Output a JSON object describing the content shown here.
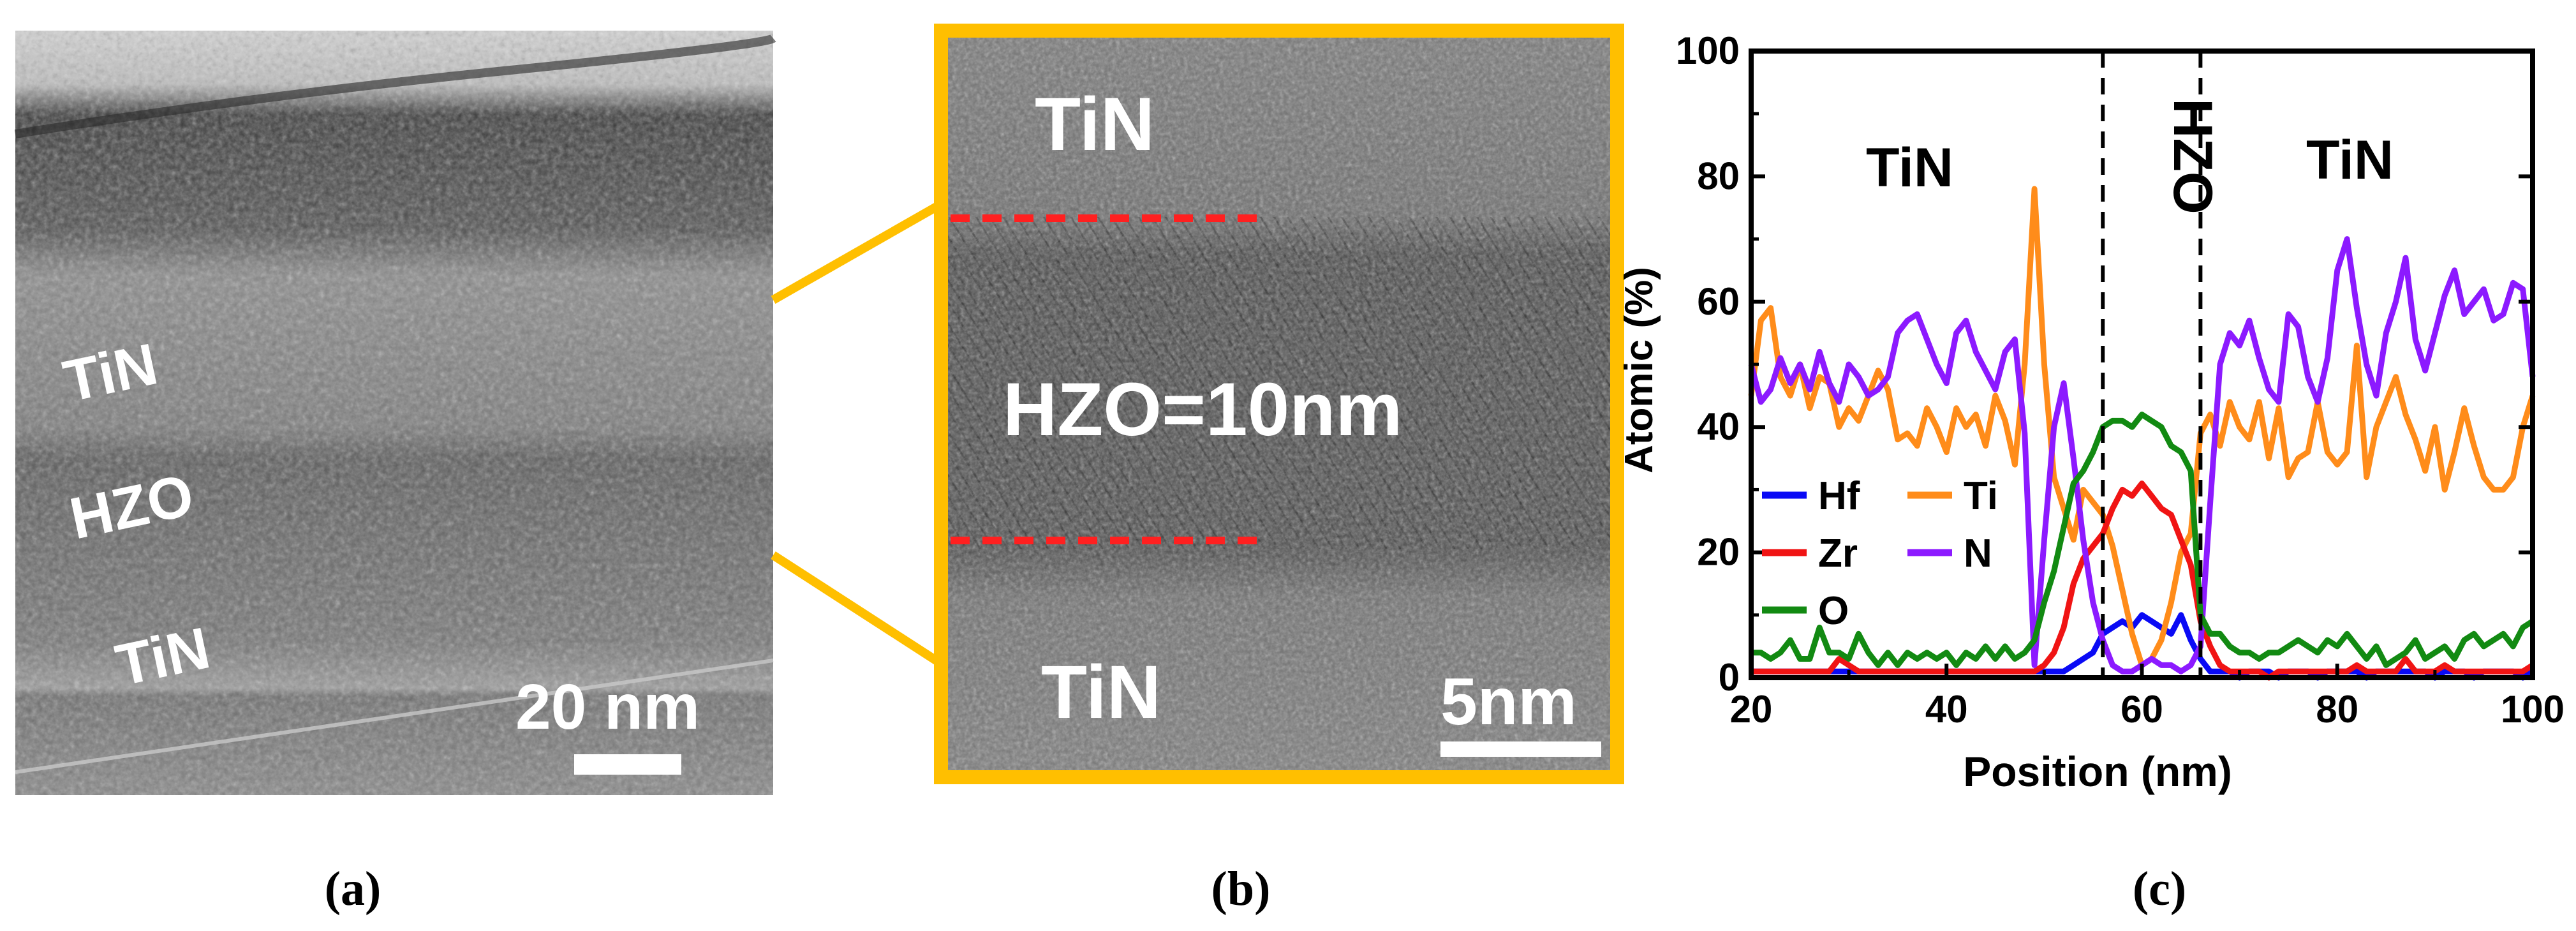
{
  "panels": {
    "a": {
      "caption": "(a)",
      "layer_labels": [
        "TiN",
        "HZO",
        "TiN"
      ],
      "scale_bar_label": "20 nm"
    },
    "b": {
      "caption": "(b)",
      "top_label": "TiN",
      "middle_label": "HZO=10nm",
      "bottom_label": "TiN",
      "scale_bar_label": "5nm"
    },
    "c": {
      "caption": "(c)",
      "region_labels": {
        "left": "TiN",
        "middle": "HZO",
        "right": "TiN"
      }
    }
  },
  "colors": {
    "highlight_frame": "#FFBF00",
    "interface_dash": "#FF2020",
    "Hf": "#0A0AF5",
    "Ti": "#FF8C1A",
    "Zr": "#F01414",
    "N": "#8C1AFF",
    "O": "#128A12"
  },
  "chart_data": {
    "type": "line",
    "title": "",
    "xlabel": "Position (nm)",
    "ylabel": "Atomic (%)",
    "xlim": [
      20,
      100
    ],
    "ylim": [
      0,
      100
    ],
    "xticks": [
      20,
      40,
      60,
      80,
      100
    ],
    "yticks": [
      0,
      20,
      40,
      60,
      80,
      100
    ],
    "boundaries": [
      56,
      66
    ],
    "x": [
      20,
      21,
      22,
      23,
      24,
      25,
      26,
      27,
      28,
      29,
      30,
      31,
      32,
      33,
      34,
      35,
      36,
      37,
      38,
      39,
      40,
      41,
      42,
      43,
      44,
      45,
      46,
      47,
      48,
      49,
      50,
      51,
      52,
      53,
      54,
      55,
      56,
      57,
      58,
      59,
      60,
      61,
      62,
      63,
      64,
      65,
      66,
      67,
      68,
      69,
      70,
      71,
      72,
      73,
      74,
      75,
      76,
      77,
      78,
      79,
      80,
      81,
      82,
      83,
      84,
      85,
      86,
      87,
      88,
      89,
      90,
      91,
      92,
      93,
      94,
      95,
      96,
      97,
      98,
      99,
      100
    ],
    "series": [
      {
        "name": "Hf",
        "values": [
          1,
          1,
          1,
          1,
          1,
          1,
          1,
          1,
          1,
          1,
          1,
          1,
          1,
          1,
          1,
          1,
          1,
          1,
          1,
          1,
          1,
          1,
          1,
          1,
          1,
          1,
          1,
          1,
          1,
          1,
          1,
          1,
          1,
          2,
          3,
          4,
          7,
          8,
          9,
          8,
          10,
          9,
          8,
          7,
          10,
          6,
          3,
          1,
          1,
          1,
          0,
          1,
          1,
          1,
          0,
          1,
          1,
          1,
          0,
          1,
          1,
          1,
          1,
          0,
          1,
          1,
          1,
          1,
          1,
          1,
          0,
          1,
          1,
          1,
          0,
          1,
          1,
          1,
          1,
          0,
          1
        ]
      },
      {
        "name": "Ti",
        "values": [
          45,
          57,
          59,
          48,
          45,
          50,
          43,
          48,
          47,
          40,
          43,
          41,
          45,
          49,
          46,
          38,
          39,
          37,
          43,
          40,
          36,
          43,
          40,
          42,
          37,
          45,
          41,
          34,
          50,
          78,
          50,
          32,
          27,
          22,
          30,
          28,
          26,
          21,
          14,
          7,
          2,
          3,
          6,
          12,
          20,
          23,
          39,
          42,
          37,
          44,
          40,
          38,
          44,
          35,
          43,
          32,
          35,
          36,
          44,
          36,
          34,
          36,
          53,
          32,
          40,
          44,
          48,
          42,
          38,
          33,
          40,
          30,
          36,
          43,
          37,
          32,
          30,
          30,
          32,
          40,
          45
        ]
      },
      {
        "name": "Zr",
        "values": [
          1,
          1,
          1,
          1,
          1,
          1,
          1,
          1,
          1,
          3,
          2,
          1,
          1,
          1,
          1,
          1,
          1,
          1,
          1,
          1,
          1,
          1,
          1,
          1,
          1,
          1,
          1,
          1,
          1,
          1,
          2,
          4,
          8,
          15,
          19,
          21,
          23,
          27,
          30,
          29,
          31,
          29,
          27,
          26,
          22,
          18,
          9,
          5,
          2,
          1,
          1,
          1,
          1,
          0,
          1,
          1,
          1,
          1,
          1,
          1,
          1,
          1,
          2,
          1,
          1,
          1,
          1,
          3,
          1,
          1,
          1,
          2,
          1,
          1,
          1,
          1,
          1,
          1,
          1,
          1,
          2
        ]
      },
      {
        "name": "N",
        "values": [
          50,
          44,
          46,
          51,
          47,
          50,
          46,
          52,
          47,
          44,
          50,
          48,
          45,
          46,
          48,
          55,
          57,
          58,
          54,
          50,
          47,
          55,
          57,
          52,
          49,
          46,
          52,
          54,
          39,
          2,
          22,
          40,
          47,
          35,
          22,
          12,
          6,
          2,
          1,
          1,
          2,
          3,
          2,
          2,
          1,
          2,
          5,
          28,
          50,
          55,
          53,
          57,
          51,
          46,
          44,
          58,
          56,
          48,
          44,
          51,
          65,
          70,
          59,
          50,
          45,
          55,
          60,
          67,
          54,
          49,
          55,
          61,
          65,
          58,
          60,
          62,
          57,
          58,
          63,
          62,
          48
        ]
      },
      {
        "name": "O",
        "values": [
          4,
          4,
          3,
          4,
          6,
          3,
          3,
          8,
          4,
          4,
          3,
          7,
          4,
          2,
          4,
          2,
          4,
          3,
          4,
          3,
          4,
          2,
          4,
          3,
          5,
          3,
          5,
          3,
          4,
          6,
          12,
          17,
          24,
          31,
          33,
          36,
          40,
          41,
          41,
          40,
          42,
          41,
          40,
          37,
          36,
          33,
          10,
          7,
          7,
          5,
          4,
          4,
          3,
          4,
          4,
          5,
          6,
          5,
          4,
          6,
          5,
          7,
          5,
          3,
          5,
          2,
          3,
          4,
          6,
          3,
          4,
          5,
          3,
          6,
          7,
          5,
          6,
          7,
          5,
          8,
          9
        ]
      }
    ],
    "legend": [
      {
        "name": "Hf",
        "position": "left-column"
      },
      {
        "name": "Ti",
        "position": "right-column"
      },
      {
        "name": "Zr",
        "position": "left-column"
      },
      {
        "name": "N",
        "position": "right-column"
      },
      {
        "name": "O",
        "position": "left-column"
      }
    ],
    "legend_placement": "lower-left"
  }
}
